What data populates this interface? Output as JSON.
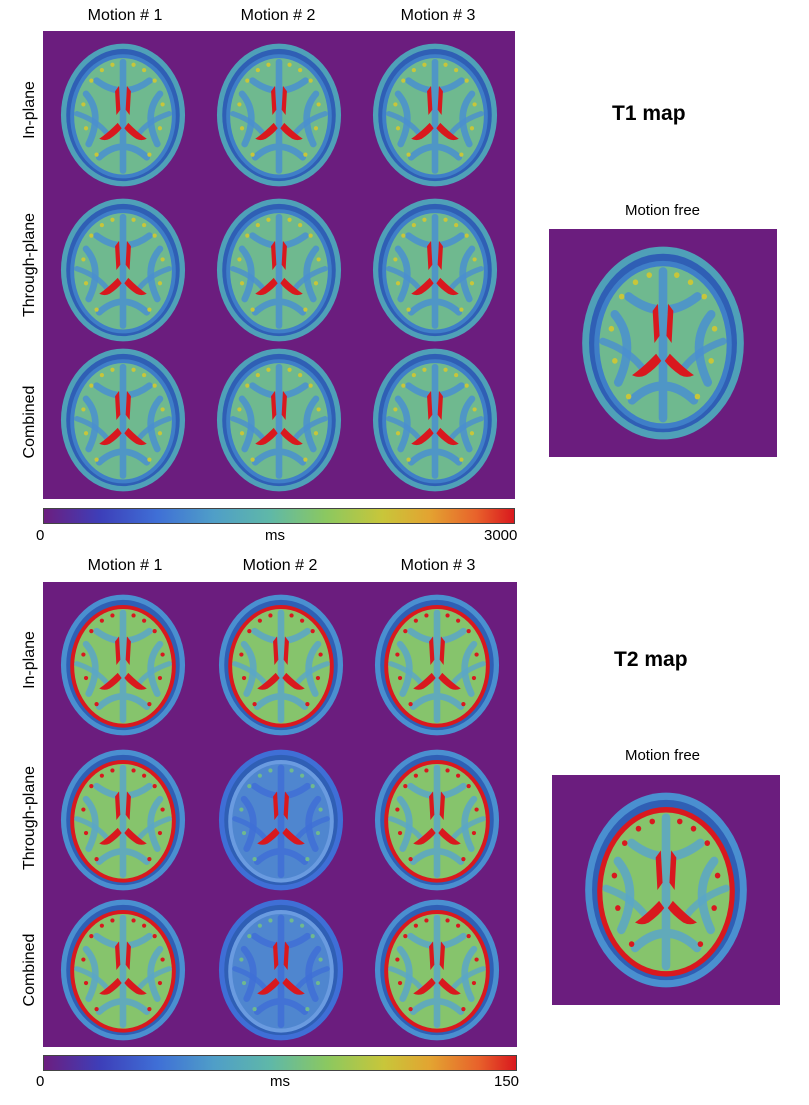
{
  "t1": {
    "columns": [
      "Motion # 1",
      "Motion # 2",
      "Motion # 3"
    ],
    "rows": [
      "In-plane",
      "Through-plane",
      "Combined"
    ],
    "title": "T1 map",
    "free_label": "Motion free",
    "colorbar": {
      "min": "0",
      "unit": "ms",
      "max": "3000"
    }
  },
  "t2": {
    "columns": [
      "Motion # 1",
      "Motion # 2",
      "Motion # 3"
    ],
    "rows": [
      "In-plane",
      "Through-plane",
      "Combined"
    ],
    "title": "T2 map",
    "free_label": "Motion free",
    "colorbar": {
      "min": "0",
      "unit": "ms",
      "max": "150"
    }
  },
  "colors": {
    "background": "#6b1d7e",
    "skull": "#4fa0b8",
    "tissue": "#6fb98f",
    "csf": "#d9181e",
    "white_matter": "#4a8fd0"
  }
}
